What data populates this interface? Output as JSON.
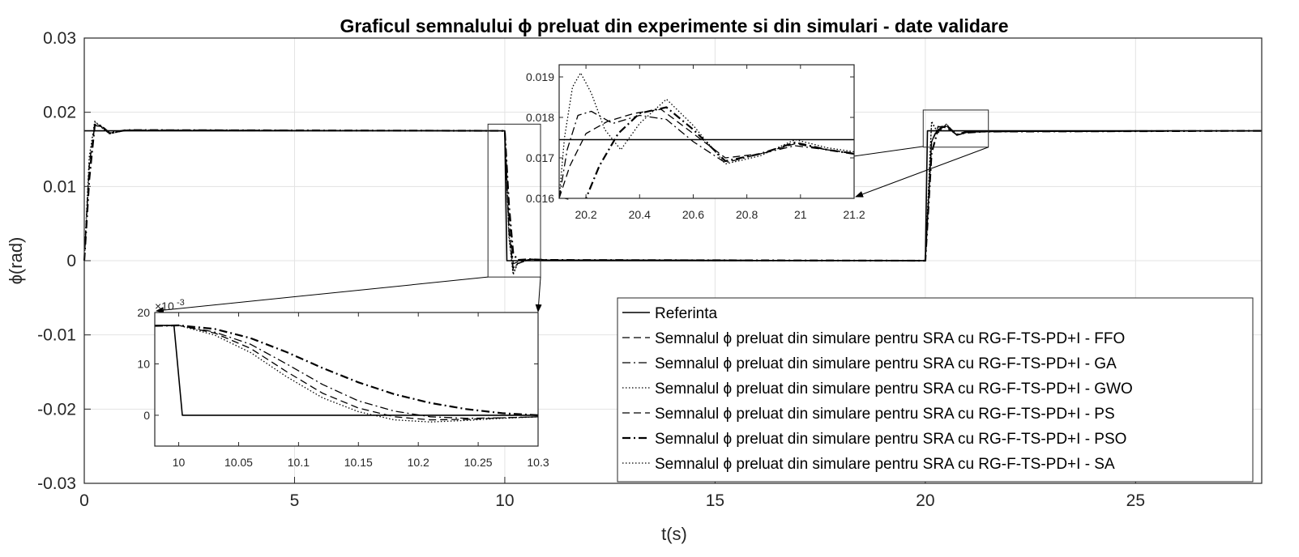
{
  "chart_data": {
    "type": "line",
    "title": "Graficul semnalului ϕ preluat din experimente si din simulari - date validare",
    "xlabel": "t(s)",
    "ylabel": "ϕ(rad)",
    "xlim": [
      0,
      28
    ],
    "ylim": [
      -0.03,
      0.03
    ],
    "xticks": [
      "0",
      "5",
      "10",
      "15",
      "20",
      "25"
    ],
    "yticks": [
      "-0.03",
      "-0.02",
      "-0.01",
      "0",
      "0.01",
      "0.02",
      "0.03"
    ],
    "grid": true,
    "legend_position": "bottom-right",
    "series": [
      {
        "name": "Referinta",
        "style": "solid",
        "x": [
          0,
          10,
          10.05,
          20,
          20.05,
          28
        ],
        "y": [
          0.0175,
          0.0175,
          0,
          0,
          0.0175,
          0.0175
        ]
      },
      {
        "name": "Semnalul ϕ preluat din simulare pentru SRA cu RG-F-TS-PD+I - FFO",
        "style": "dashed",
        "x": [
          0,
          0.12,
          0.25,
          0.4,
          0.6,
          1.0,
          10.0,
          10.1,
          10.2,
          10.3,
          10.6,
          11.0,
          20.0,
          20.15,
          20.3,
          20.5,
          20.75,
          21.0,
          21.5,
          28
        ],
        "y": [
          0,
          0.013,
          0.0182,
          0.0181,
          0.0172,
          0.0176,
          0.0175,
          0.004,
          -0.001,
          -0.0004,
          0.0002,
          0.0001,
          0.0,
          0.016,
          0.0178,
          0.0181,
          0.0169,
          0.0173,
          0.0174,
          0.0175
        ]
      },
      {
        "name": "Semnalul ϕ preluat din simulare pentru SRA cu RG-F-TS-PD+I - GA",
        "style": "dashdot",
        "x": [
          0,
          0.12,
          0.25,
          0.4,
          0.6,
          1.0,
          10.0,
          10.1,
          10.2,
          10.3,
          10.6,
          11.0,
          20.0,
          20.15,
          20.3,
          20.5,
          20.75,
          21.0,
          21.5,
          28
        ],
        "y": [
          0,
          0.012,
          0.0184,
          0.0182,
          0.0172,
          0.0176,
          0.0175,
          0.006,
          -0.0004,
          -0.0002,
          0.0002,
          0.0001,
          0.0,
          0.016,
          0.0181,
          0.0179,
          0.017,
          0.0172,
          0.0174,
          0.0175
        ]
      },
      {
        "name": "Semnalul ϕ preluat din simulare pentru SRA cu RG-F-TS-PD+I - GWO",
        "style": "dotted",
        "x": [
          0,
          0.12,
          0.25,
          0.4,
          0.6,
          1.0,
          10.0,
          10.1,
          10.2,
          10.3,
          10.6,
          11.0,
          20.0,
          20.15,
          20.3,
          20.5,
          20.75,
          21.0,
          21.5,
          28
        ],
        "y": [
          0,
          0.014,
          0.0188,
          0.018,
          0.0171,
          0.0176,
          0.0175,
          0.003,
          -0.0019,
          -0.0004,
          0.0002,
          0.0001,
          0.0,
          0.0188,
          0.0172,
          0.0184,
          0.0169,
          0.0174,
          0.0174,
          0.0175
        ]
      },
      {
        "name": "Semnalul ϕ preluat din simulare pentru SRA cu RG-F-TS-PD+I - PS",
        "style": "dashed",
        "x": [
          0,
          0.12,
          0.25,
          0.4,
          0.6,
          1.0,
          10.0,
          10.1,
          10.2,
          10.3,
          10.6,
          11.0,
          20.0,
          20.15,
          20.3,
          20.5,
          20.75,
          21.0,
          21.5,
          28
        ],
        "y": [
          0,
          0.013,
          0.0182,
          0.0181,
          0.0172,
          0.0176,
          0.0175,
          0.004,
          -0.0012,
          -0.0004,
          0.0002,
          0.0001,
          0.0,
          0.016,
          0.018,
          0.0182,
          0.0169,
          0.0173,
          0.0174,
          0.0175
        ]
      },
      {
        "name": "Semnalul ϕ preluat din simulare pentru SRA cu RG-F-TS-PD+I - PSO",
        "style": "dashdot-thick",
        "x": [
          0,
          0.12,
          0.25,
          0.4,
          0.6,
          1.0,
          10.0,
          10.1,
          10.2,
          10.3,
          10.6,
          11.0,
          20.0,
          20.15,
          20.3,
          20.5,
          20.75,
          21.0,
          21.5,
          28
        ],
        "y": [
          0,
          0.011,
          0.0183,
          0.0182,
          0.0172,
          0.0176,
          0.0175,
          0.0075,
          0.001,
          0.0001,
          0.0002,
          0.0001,
          0.0,
          0.0145,
          0.0176,
          0.0182,
          0.017,
          0.0174,
          0.0174,
          0.0175
        ]
      },
      {
        "name": "Semnalul ϕ preluat din simulare pentru SRA cu RG-F-TS-PD+I - SA",
        "style": "dotted",
        "x": [
          0,
          0.12,
          0.25,
          0.4,
          0.6,
          1.0,
          10.0,
          10.1,
          10.2,
          10.3,
          10.6,
          11.0,
          20.0,
          20.15,
          20.3,
          20.5,
          20.75,
          21.0,
          21.5,
          28
        ],
        "y": [
          0,
          0.014,
          0.0187,
          0.018,
          0.0171,
          0.0176,
          0.0175,
          0.0035,
          -0.0017,
          -0.0004,
          0.0002,
          0.0001,
          0.0,
          0.0186,
          0.0173,
          0.0184,
          0.0169,
          0.0174,
          0.0174,
          0.0175
        ]
      }
    ],
    "insets": [
      {
        "name": "inset-step-down",
        "xlim": [
          9.98,
          10.3
        ],
        "ylim": [
          -6,
          20
        ],
        "xticks": [
          "10",
          "10.05",
          "10.1",
          "10.15",
          "10.2",
          "10.25",
          "10.3"
        ],
        "yticks": [
          "0",
          "10",
          "20"
        ],
        "exponent": "×10",
        "exponent_power": "-3",
        "series": [
          {
            "style": "solid",
            "x": [
              9.98,
              9.996,
              10.003,
              10.3
            ],
            "y": [
              17.5,
              17.5,
              0,
              0
            ]
          },
          {
            "style": "dashed",
            "x": [
              9.98,
              10.0,
              10.03,
              10.06,
              10.09,
              10.12,
              10.15,
              10.18,
              10.21,
              10.24,
              10.27,
              10.3
            ],
            "y": [
              17.4,
              17.5,
              16.0,
              13.0,
              8.5,
              4.3,
              1.4,
              -0.3,
              -0.9,
              -0.8,
              -0.5,
              -0.3
            ]
          },
          {
            "style": "dashdot",
            "x": [
              9.98,
              10.0,
              10.03,
              10.06,
              10.09,
              10.12,
              10.15,
              10.18,
              10.21,
              10.24,
              10.27,
              10.3
            ],
            "y": [
              17.4,
              17.5,
              16.2,
              13.8,
              10.0,
              6.0,
              2.8,
              0.8,
              -0.3,
              -0.6,
              -0.5,
              -0.3
            ]
          },
          {
            "style": "dotted",
            "x": [
              9.98,
              10.0,
              10.03,
              10.06,
              10.09,
              10.12,
              10.15,
              10.18,
              10.21,
              10.24,
              10.27,
              10.3
            ],
            "y": [
              17.4,
              17.5,
              15.6,
              12.2,
              7.5,
              3.4,
              0.7,
              -0.9,
              -1.3,
              -1.0,
              -0.6,
              -0.3
            ]
          },
          {
            "style": "dashdot-thick",
            "x": [
              9.98,
              10.0,
              10.03,
              10.06,
              10.09,
              10.12,
              10.15,
              10.18,
              10.21,
              10.24,
              10.27,
              10.3
            ],
            "y": [
              17.4,
              17.5,
              16.8,
              15.0,
              12.3,
              9.2,
              6.4,
              4.1,
              2.4,
              1.2,
              0.4,
              0.0
            ]
          }
        ]
      },
      {
        "name": "inset-step-up",
        "xlim": [
          20.1,
          21.2
        ],
        "ylim": [
          0.016,
          0.0193
        ],
        "xticks": [
          "20.2",
          "20.4",
          "20.6",
          "20.8",
          "21",
          "21.2"
        ],
        "yticks": [
          "0.016",
          "0.017",
          "0.018",
          "0.019"
        ],
        "series": [
          {
            "style": "solid",
            "x": [
              20.1,
              21.2
            ],
            "y": [
              0.01745,
              0.01745
            ]
          },
          {
            "style": "dashed",
            "x": [
              20.1,
              20.14,
              20.2,
              20.28,
              20.38,
              20.48,
              20.6,
              20.72,
              20.85,
              20.98,
              21.1,
              21.2
            ],
            "y": [
              0.016,
              0.0168,
              0.0176,
              0.0179,
              0.0181,
              0.0182,
              0.0176,
              0.017,
              0.0171,
              0.01735,
              0.0172,
              0.01712
            ]
          },
          {
            "style": "dashdot",
            "x": [
              20.1,
              20.13,
              20.17,
              20.22,
              20.3,
              20.4,
              20.5,
              20.6,
              20.72,
              20.85,
              20.98,
              21.1,
              21.2
            ],
            "y": [
              0.016,
              0.0172,
              0.01805,
              0.01815,
              0.01785,
              0.01805,
              0.01795,
              0.0174,
              0.01688,
              0.0171,
              0.0173,
              0.0172,
              0.0171
            ]
          },
          {
            "style": "dotted",
            "x": [
              20.1,
              20.12,
              20.15,
              20.18,
              20.22,
              20.27,
              20.33,
              20.4,
              20.5,
              20.6,
              20.72,
              20.85,
              20.98,
              21.1,
              21.2
            ],
            "y": [
              0.016,
              0.0175,
              0.01875,
              0.0191,
              0.0186,
              0.0177,
              0.0172,
              0.01785,
              0.01845,
              0.0178,
              0.01685,
              0.01705,
              0.01745,
              0.01725,
              0.01715
            ]
          },
          {
            "style": "dashdot-thick",
            "x": [
              20.1,
              20.2,
              20.25,
              20.32,
              20.4,
              20.5,
              20.6,
              20.72,
              20.85,
              20.98,
              21.1,
              21.2
            ],
            "y": [
              0.0153,
              0.016,
              0.0168,
              0.0176,
              0.0181,
              0.01825,
              0.0177,
              0.01692,
              0.0171,
              0.01738,
              0.0172,
              0.0171
            ]
          }
        ]
      }
    ]
  }
}
